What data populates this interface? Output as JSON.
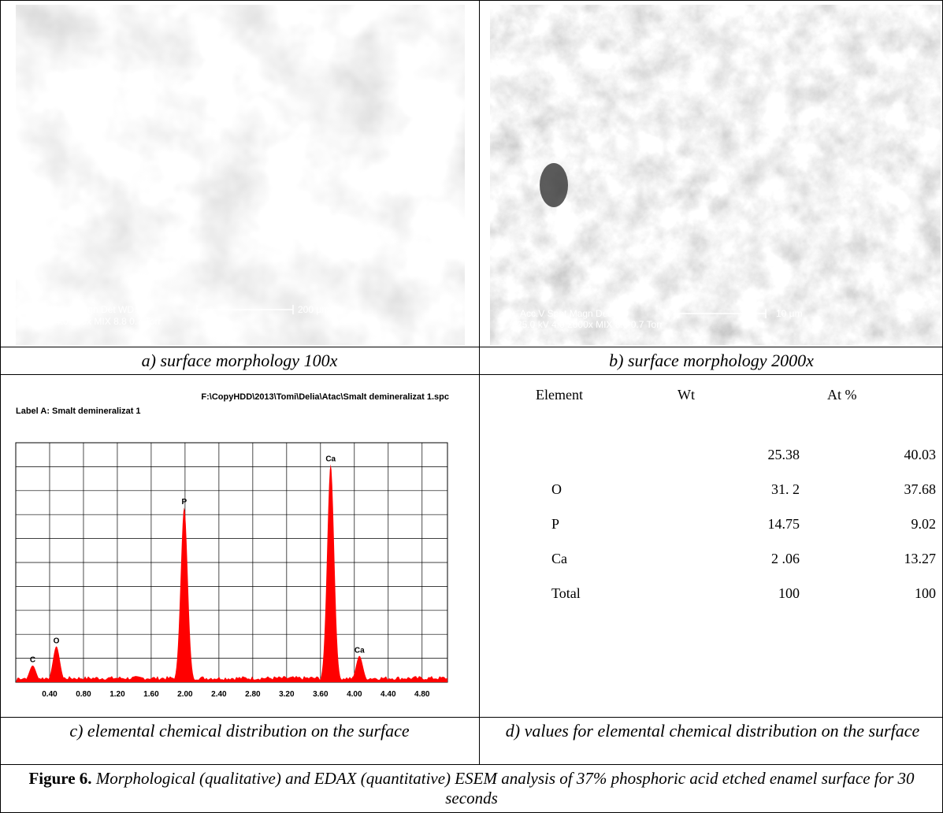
{
  "panels": [
    {
      "caption": "a) surface morphology 100x",
      "sem": {
        "line1": "Acc.V   Spot Magn    Det  WD",
        "line2": "25.0 kV 4.0   100x    MIX  8.8    0.7 Torr",
        "scale": "200 µm"
      }
    },
    {
      "caption": "b) surface morphology 2000x",
      "sem": {
        "line1": "Acc.V   Spot Magn    Det  WD",
        "line2": "25.0 kV 4.0   2000x   MIX  8.8    0.7 Torr",
        "scale": "10 µm"
      }
    },
    {
      "caption": "c) elemental chemical distribution on the surface",
      "spectrum": {
        "type": "spectrum",
        "file": "F:\\CopyHDD\\2013\\Tomi\\Delia\\Atac\\Smalt demineralizat 1.spc",
        "label": "Label A: Smalt demineralizat 1",
        "xlim": [
          0,
          5.1
        ],
        "ylim": [
          0,
          100
        ],
        "xticks": [
          {
            "value": 0.4,
            "label": "0.40"
          },
          {
            "value": 0.8,
            "label": "0.80"
          },
          {
            "value": 1.2,
            "label": "1.20"
          },
          {
            "value": 1.6,
            "label": "1.60"
          },
          {
            "value": 2.0,
            "label": "2.00"
          },
          {
            "value": 2.4,
            "label": "2.40"
          },
          {
            "value": 2.8,
            "label": "2.80"
          },
          {
            "value": 3.2,
            "label": "3.20"
          },
          {
            "value": 3.6,
            "label": "3.60"
          },
          {
            "value": 4.0,
            "label": "4.00"
          },
          {
            "value": 4.4,
            "label": "4.40"
          },
          {
            "value": 4.8,
            "label": "4.80"
          }
        ],
        "color": "#ff0000",
        "peaks": [
          {
            "label": "C",
            "x": 0.2,
            "height": 7
          },
          {
            "label": "O",
            "x": 0.48,
            "height": 15
          },
          {
            "label": "P",
            "x": 1.99,
            "height": 73
          },
          {
            "label": "Ca",
            "x": 3.72,
            "height": 91
          },
          {
            "label": "Ca",
            "x": 4.06,
            "height": 11
          }
        ]
      }
    },
    {
      "caption": "d) values for elemental chemical distribution on the surface",
      "table": {
        "header": [
          "Element",
          "Wt",
          "At %"
        ],
        "rows": [
          [
            "",
            "25.38",
            "40.03"
          ],
          [
            "O",
            "31.  2",
            "37.68"
          ],
          [
            "P",
            "14.75",
            "9.02"
          ],
          [
            "Ca",
            "2   .06",
            "13.27"
          ],
          [
            "Total",
            "100",
            "100"
          ]
        ]
      }
    }
  ],
  "figure": {
    "label": "Figure 6.",
    "text": "Morphological (qualitative) and EDAX (quantitative) ESEM analysis of 37% phosphoric acid etched enamel surface for 30 seconds"
  }
}
